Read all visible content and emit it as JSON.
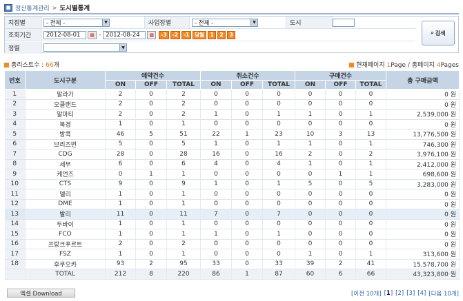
{
  "breadcrumb": {
    "parent": "정산통계관리",
    "current": "도시별통계"
  },
  "filters": {
    "branch_label": "지점별",
    "branch_value": "- 전체 -",
    "division_label": "사업장별",
    "division_value": "- 전체 -",
    "city_label": "도시",
    "city_value": "",
    "period_label": "조회기간",
    "date_from": "2012-08-01",
    "date_sep": "-",
    "date_to": "2012-08-24",
    "quick": [
      "-3",
      "-2",
      "-1",
      "당월",
      "1",
      "2",
      "3"
    ],
    "sort_label": "정렬",
    "sort_value": "",
    "search_label": "검색"
  },
  "summary": {
    "total_label": "총리스트수 :",
    "total_count": "66",
    "total_unit": "개",
    "page_label": "현재페이지",
    "page_current": "1",
    "page_unit": "Page /",
    "page_total_label": "총페이지",
    "page_total": "4",
    "page_total_unit": "Pages"
  },
  "table": {
    "group_headers": {
      "reserve": "예약건수",
      "cancel": "취소건수",
      "purchase": "구매건수"
    },
    "headers": {
      "no": "번호",
      "city": "도시구분",
      "on": "ON",
      "off": "OFF",
      "total": "TOTAL",
      "amount": "총 구매금액"
    },
    "rows": [
      {
        "no": "1",
        "city": "말라가",
        "r_on": "2",
        "r_off": "0",
        "r_tot": "2",
        "c_on": "0",
        "c_off": "0",
        "c_tot": "0",
        "p_on": "0",
        "p_off": "0",
        "p_tot": "0",
        "amt": "0 원"
      },
      {
        "no": "2",
        "city": "오클랜드",
        "r_on": "2",
        "r_off": "0",
        "r_tot": "2",
        "c_on": "0",
        "c_off": "0",
        "c_tot": "0",
        "p_on": "0",
        "p_off": "0",
        "p_tot": "0",
        "amt": "0 원"
      },
      {
        "no": "3",
        "city": "알마티",
        "r_on": "2",
        "r_off": "0",
        "r_tot": "2",
        "c_on": "1",
        "c_off": "0",
        "c_tot": "1",
        "p_on": "1",
        "p_off": "0",
        "p_tot": "1",
        "amt": "2,539,000 원"
      },
      {
        "no": "4",
        "city": "북경",
        "r_on": "1",
        "r_off": "0",
        "r_tot": "1",
        "c_on": "0",
        "c_off": "0",
        "c_tot": "0",
        "p_on": "0",
        "p_off": "0",
        "p_tot": "0",
        "amt": "0 원"
      },
      {
        "no": "5",
        "city": "방콕",
        "r_on": "46",
        "r_off": "5",
        "r_tot": "51",
        "c_on": "22",
        "c_off": "1",
        "c_tot": "23",
        "p_on": "10",
        "p_off": "3",
        "p_tot": "13",
        "amt": "13,776,500 원"
      },
      {
        "no": "6",
        "city": "브리즈번",
        "r_on": "5",
        "r_off": "0",
        "r_tot": "5",
        "c_on": "1",
        "c_off": "0",
        "c_tot": "1",
        "p_on": "1",
        "p_off": "0",
        "p_tot": "1",
        "amt": "746,300 원"
      },
      {
        "no": "7",
        "city": "CDG",
        "r_on": "28",
        "r_off": "0",
        "r_tot": "28",
        "c_on": "16",
        "c_off": "0",
        "c_tot": "16",
        "p_on": "2",
        "p_off": "0",
        "p_tot": "2",
        "amt": "3,976,100 원"
      },
      {
        "no": "8",
        "city": "세부",
        "r_on": "6",
        "r_off": "0",
        "r_tot": "6",
        "c_on": "4",
        "c_off": "0",
        "c_tot": "4",
        "p_on": "1",
        "p_off": "0",
        "p_tot": "1",
        "amt": "2,412,000 원"
      },
      {
        "no": "9",
        "city": "케언즈",
        "r_on": "0",
        "r_off": "1",
        "r_tot": "1",
        "c_on": "0",
        "c_off": "0",
        "c_tot": "0",
        "p_on": "0",
        "p_off": "1",
        "p_tot": "1",
        "amt": "698,600 원"
      },
      {
        "no": "10",
        "city": "CTS",
        "r_on": "9",
        "r_off": "0",
        "r_tot": "9",
        "c_on": "1",
        "c_off": "0",
        "c_tot": "1",
        "p_on": "5",
        "p_off": "0",
        "p_tot": "5",
        "amt": "3,283,000 원"
      },
      {
        "no": "11",
        "city": "델리",
        "r_on": "1",
        "r_off": "0",
        "r_tot": "1",
        "c_on": "0",
        "c_off": "0",
        "c_tot": "0",
        "p_on": "0",
        "p_off": "0",
        "p_tot": "0",
        "amt": "0 원"
      },
      {
        "no": "12",
        "city": "DME",
        "r_on": "1",
        "r_off": "0",
        "r_tot": "1",
        "c_on": "0",
        "c_off": "0",
        "c_tot": "0",
        "p_on": "0",
        "p_off": "0",
        "p_tot": "0",
        "amt": "0 원"
      },
      {
        "no": "13",
        "city": "발리",
        "r_on": "11",
        "r_off": "0",
        "r_tot": "11",
        "c_on": "7",
        "c_off": "0",
        "c_tot": "7",
        "p_on": "0",
        "p_off": "0",
        "p_tot": "0",
        "amt": "0 원"
      },
      {
        "no": "14",
        "city": "두바이",
        "r_on": "1",
        "r_off": "0",
        "r_tot": "1",
        "c_on": "0",
        "c_off": "0",
        "c_tot": "0",
        "p_on": "0",
        "p_off": "0",
        "p_tot": "0",
        "amt": "0 원"
      },
      {
        "no": "15",
        "city": "FCO",
        "r_on": "1",
        "r_off": "0",
        "r_tot": "1",
        "c_on": "1",
        "c_off": "0",
        "c_tot": "1",
        "p_on": "0",
        "p_off": "0",
        "p_tot": "0",
        "amt": "0 원"
      },
      {
        "no": "16",
        "city": "프랑크푸르트",
        "r_on": "2",
        "r_off": "0",
        "r_tot": "2",
        "c_on": "0",
        "c_off": "0",
        "c_tot": "0",
        "p_on": "0",
        "p_off": "0",
        "p_tot": "0",
        "amt": "0 원"
      },
      {
        "no": "17",
        "city": "FSZ",
        "r_on": "1",
        "r_off": "0",
        "r_tot": "1",
        "c_on": "0",
        "c_off": "0",
        "c_tot": "0",
        "p_on": "1",
        "p_off": "0",
        "p_tot": "1",
        "amt": "313,600 원"
      },
      {
        "no": "18",
        "city": "후쿠오카",
        "r_on": "93",
        "r_off": "2",
        "r_tot": "95",
        "c_on": "33",
        "c_off": "0",
        "c_tot": "33",
        "p_on": "39",
        "p_off": "2",
        "p_tot": "41",
        "amt": "15,578,700 원"
      }
    ],
    "total": {
      "label": "TOTAL",
      "r_on": "212",
      "r_off": "8",
      "r_tot": "220",
      "c_on": "86",
      "c_off": "1",
      "c_tot": "87",
      "p_on": "60",
      "p_off": "6",
      "p_tot": "66",
      "amt": "43,323,800 원"
    }
  },
  "download_label": "엑셀 Download",
  "pager": {
    "prev": "[이전 10개]",
    "pages": [
      "1",
      "2",
      "3",
      "4"
    ],
    "current": "1",
    "next": "[다음 10개]"
  }
}
